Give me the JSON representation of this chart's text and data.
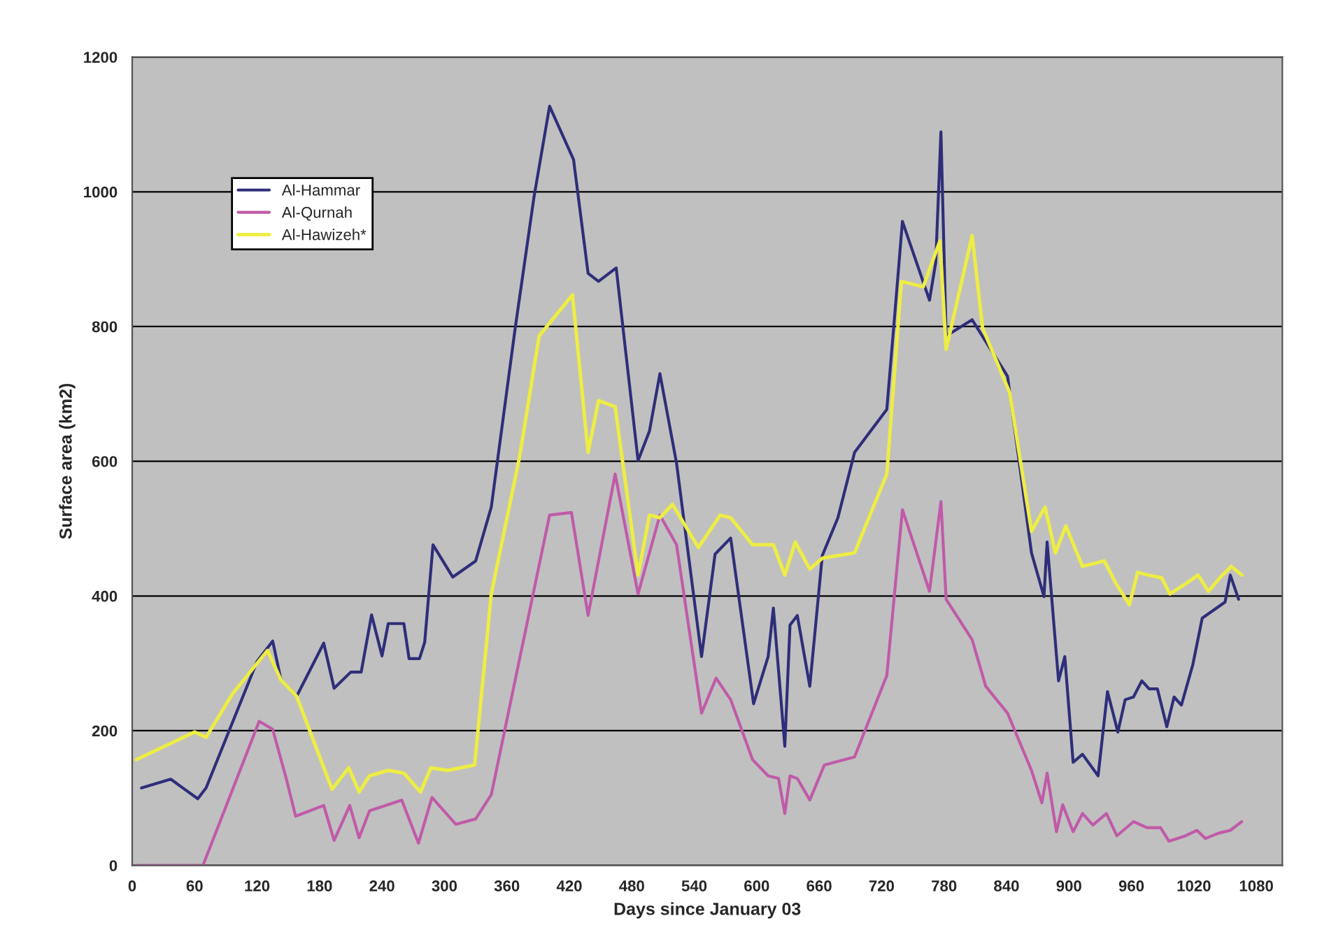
{
  "chart_data": {
    "type": "line",
    "xlabel": "Days since January 03",
    "ylabel": "Surface area (km2)",
    "xlim": [
      0,
      1105
    ],
    "ylim": [
      0,
      1200
    ],
    "xticks": [
      0,
      60,
      120,
      180,
      240,
      300,
      360,
      420,
      480,
      540,
      600,
      660,
      720,
      780,
      840,
      900,
      960,
      1020,
      1080
    ],
    "yticks": [
      0,
      200,
      400,
      600,
      800,
      1000,
      1200
    ],
    "grid": "y",
    "legend": "top left",
    "marker": "none",
    "line_style": "solid",
    "series": [
      {
        "name": "Al-Hammar",
        "color": "#2e2e7a",
        "x": [
          9,
          37,
          63,
          71,
          120,
          135,
          143,
          158,
          184,
          194,
          210,
          220,
          230,
          240,
          246,
          261,
          266,
          276,
          281,
          289,
          308,
          330,
          345,
          368,
          386,
          401,
          424,
          438,
          448,
          465,
          486,
          497,
          507,
          523,
          547,
          560,
          575,
          597,
          611,
          616,
          627,
          632,
          639,
          651,
          663,
          678,
          694,
          725,
          732,
          740,
          766,
          772,
          777,
          782,
          807,
          841,
          864,
          876,
          879,
          890,
          896,
          904,
          913,
          928,
          937,
          947,
          954,
          962,
          970,
          977,
          985,
          994,
          1001,
          1008,
          1019,
          1028,
          1050,
          1055,
          1063
        ],
        "values": [
          115,
          128,
          99,
          115,
          303,
          333,
          275,
          251,
          330,
          263,
          287,
          287,
          372,
          311,
          359,
          359,
          307,
          307,
          331,
          476,
          428,
          452,
          532,
          798,
          992,
          1127,
          1048,
          879,
          867,
          887,
          601,
          645,
          730,
          597,
          310,
          462,
          486,
          240,
          310,
          382,
          177,
          357,
          371,
          266,
          460,
          516,
          613,
          677,
          806,
          956,
          839,
          895,
          1089,
          786,
          810,
          726,
          464,
          399,
          480,
          274,
          310,
          153,
          165,
          133,
          258,
          198,
          246,
          250,
          274,
          262,
          262,
          206,
          250,
          238,
          298,
          367,
          391,
          431,
          395
        ]
      },
      {
        "name": "Al-Qurnah",
        "color": "#c05aa8",
        "x": [
          4,
          68,
          122,
          135,
          148,
          157,
          184,
          194,
          209,
          218,
          228,
          259,
          275,
          288,
          311,
          330,
          345,
          401,
          422,
          438,
          464,
          486,
          507,
          523,
          547,
          561,
          575,
          596,
          611,
          621,
          627,
          632,
          639,
          651,
          665,
          694,
          725,
          740,
          766,
          777,
          782,
          807,
          820,
          841,
          864,
          874,
          879,
          888,
          894,
          904,
          913,
          923,
          936,
          946,
          962,
          975,
          988,
          996,
          1012,
          1023,
          1031,
          1044,
          1055,
          1066
        ],
        "values": [
          0,
          0,
          214,
          202,
          129,
          73,
          89,
          37,
          89,
          41,
          81,
          97,
          33,
          101,
          61,
          69,
          105,
          520,
          524,
          371,
          581,
          403,
          520,
          476,
          226,
          278,
          246,
          157,
          133,
          129,
          77,
          133,
          129,
          97,
          149,
          161,
          282,
          528,
          407,
          540,
          395,
          335,
          266,
          226,
          141,
          93,
          137,
          50,
          90,
          50,
          77,
          60,
          77,
          44,
          65,
          56,
          56,
          36,
          44,
          52,
          40,
          48,
          52,
          65
        ]
      },
      {
        "name": "Al-Hawizeh*",
        "color": "#eded45",
        "x": [
          4,
          60,
          71,
          96,
          130,
          143,
          158,
          192,
          208,
          218,
          228,
          246,
          261,
          277,
          287,
          303,
          329,
          345,
          372,
          391,
          423,
          438,
          448,
          464,
          486,
          497,
          507,
          519,
          544,
          565,
          575,
          596,
          616,
          627,
          637,
          651,
          663,
          694,
          725,
          739,
          760,
          776,
          782,
          807,
          817,
          843,
          864,
          877,
          887,
          897,
          913,
          934,
          945,
          958,
          966,
          976,
          989,
          997,
          1013,
          1024,
          1034,
          1045,
          1056,
          1066
        ],
        "values": [
          157,
          198,
          190,
          254,
          319,
          275,
          251,
          113,
          145,
          109,
          133,
          141,
          137,
          109,
          145,
          141,
          149,
          403,
          605,
          786,
          847,
          613,
          690,
          681,
          431,
          520,
          516,
          536,
          472,
          520,
          516,
          476,
          476,
          431,
          480,
          440,
          456,
          464,
          581,
          867,
          859,
          927,
          766,
          935,
          798,
          702,
          496,
          532,
          464,
          504,
          444,
          452,
          419,
          387,
          435,
          431,
          427,
          403,
          419,
          431,
          407,
          427,
          444,
          431
        ]
      }
    ]
  }
}
